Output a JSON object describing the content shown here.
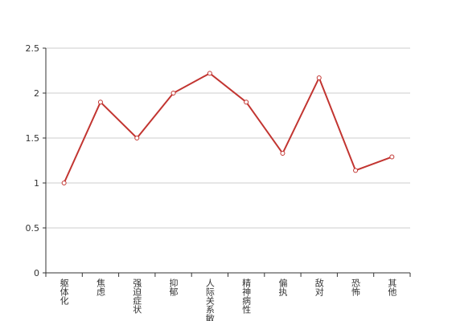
{
  "chart_data": {
    "type": "line",
    "categories": [
      "躯体化",
      "焦虑",
      "强迫症状",
      "抑郁",
      "人际关系敏感",
      "精神病性",
      "偏执",
      "敌对",
      "恐怖",
      "其他"
    ],
    "values": [
      1.0,
      1.9,
      1.5,
      2.0,
      2.22,
      1.9,
      1.33,
      2.17,
      1.14,
      1.29
    ],
    "color": "#c23531",
    "ylim": [
      0,
      2.5
    ],
    "yticks": [
      0,
      0.5,
      1,
      1.5,
      2,
      2.5
    ],
    "grid": true
  }
}
